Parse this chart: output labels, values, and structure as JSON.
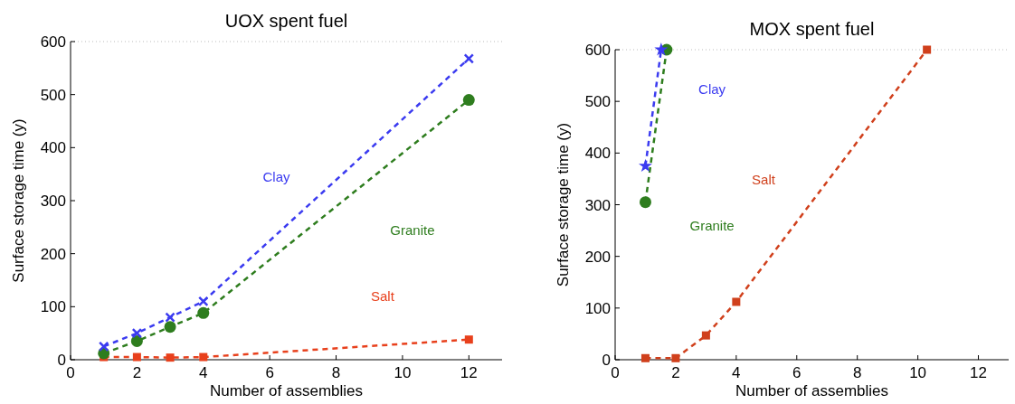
{
  "chart_data": [
    {
      "type": "line",
      "title": "UOX spent fuel",
      "xlabel": "Number of assemblies",
      "ylabel": "Surface storage time (y)",
      "xlim": [
        0,
        13
      ],
      "xticks": [
        0,
        2,
        4,
        6,
        8,
        10,
        12
      ],
      "ylim": [
        0,
        600
      ],
      "yticks": [
        0,
        100,
        200,
        300,
        400,
        500,
        600
      ],
      "line_style": "dashed",
      "series": [
        {
          "name": "Clay",
          "color": "#3b3bf0",
          "marker": "cross",
          "x": [
            1,
            2,
            3,
            4,
            12
          ],
          "values": [
            25,
            50,
            80,
            110,
            568
          ]
        },
        {
          "name": "Granite",
          "color": "#2e7d1e",
          "marker": "circle",
          "x": [
            1,
            2,
            3,
            4,
            12
          ],
          "values": [
            12,
            35,
            62,
            88,
            490
          ]
        },
        {
          "name": "Salt",
          "color": "#e8401c",
          "marker": "square",
          "x": [
            1,
            2,
            3,
            4,
            12
          ],
          "values": [
            5,
            5,
            4,
            5,
            38
          ]
        }
      ]
    },
    {
      "type": "line",
      "title": "MOX spent fuel",
      "xlabel": "Number of assemblies",
      "ylabel": "Surface storage time (y)",
      "xlim": [
        0,
        13
      ],
      "xticks": [
        0,
        2,
        4,
        6,
        8,
        10,
        12
      ],
      "ylim": [
        0,
        600
      ],
      "yticks": [
        0,
        100,
        200,
        300,
        400,
        500,
        600
      ],
      "line_style": "dashed",
      "series": [
        {
          "name": "Clay",
          "color": "#3b3bf0",
          "marker": "star",
          "x": [
            1,
            1.52
          ],
          "values": [
            375,
            600
          ]
        },
        {
          "name": "Granite",
          "color": "#2e7d1e",
          "marker": "circle",
          "x": [
            1,
            1.7
          ],
          "values": [
            305,
            600
          ]
        },
        {
          "name": "Salt",
          "color": "#d0401c",
          "marker": "square",
          "x": [
            1,
            2,
            3,
            4,
            10.3
          ],
          "values": [
            3,
            3,
            47,
            112,
            600
          ]
        }
      ]
    }
  ]
}
